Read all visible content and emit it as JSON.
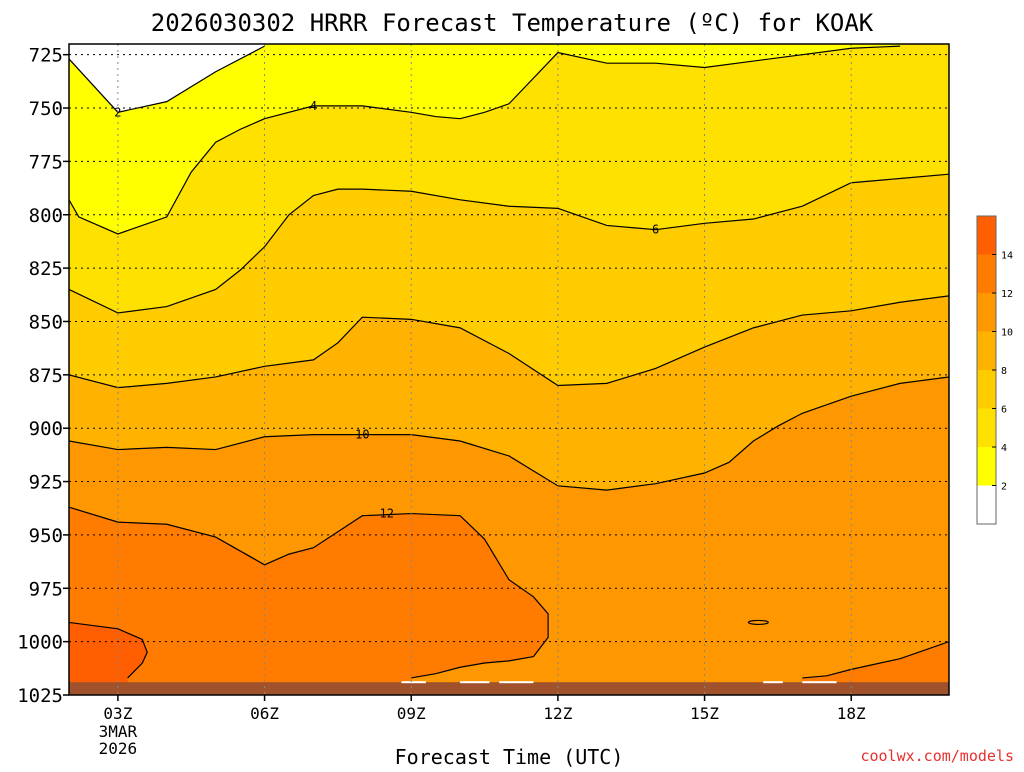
{
  "chart_data": {
    "type": "heatmap",
    "title": "2026030302 HRRR Forecast Temperature (ºC) for KOAK",
    "xlabel": "Forecast Time (UTC)",
    "ylabel": "",
    "credit": "coolwx.com/models",
    "x_range_hours": [
      2,
      20
    ],
    "y_range_hpa": [
      720,
      1025
    ],
    "y_scale": "pressure (inverted)",
    "grid": "dotted",
    "x_ticks": [
      {
        "hour": 3,
        "label": "03Z",
        "sub": [
          "3MAR",
          "2026"
        ]
      },
      {
        "hour": 6,
        "label": "06Z",
        "sub": []
      },
      {
        "hour": 9,
        "label": "09Z",
        "sub": []
      },
      {
        "hour": 12,
        "label": "12Z",
        "sub": []
      },
      {
        "hour": 15,
        "label": "15Z",
        "sub": []
      },
      {
        "hour": 18,
        "label": "18Z",
        "sub": []
      }
    ],
    "y_ticks": [
      {
        "p": 725,
        "label": "725"
      },
      {
        "p": 750,
        "label": "750"
      },
      {
        "p": 775,
        "label": "775"
      },
      {
        "p": 800,
        "label": "800"
      },
      {
        "p": 825,
        "label": "825"
      },
      {
        "p": 850,
        "label": "850"
      },
      {
        "p": 875,
        "label": "875"
      },
      {
        "p": 900,
        "label": "900"
      },
      {
        "p": 925,
        "label": "925"
      },
      {
        "p": 950,
        "label": "950"
      },
      {
        "p": 975,
        "label": "975"
      },
      {
        "p": 1000,
        "label": "1000"
      },
      {
        "p": 1025,
        "label": "1025"
      }
    ],
    "legend": {
      "placement": "right",
      "levels": [
        {
          "min": null,
          "max": 2,
          "label": "",
          "color": "#ffffff"
        },
        {
          "min": 2,
          "max": 4,
          "label": "2",
          "color": "#ffff00"
        },
        {
          "min": 4,
          "max": 6,
          "label": "4",
          "color": "#ffe100"
        },
        {
          "min": 6,
          "max": 8,
          "label": "6",
          "color": "#ffcc00"
        },
        {
          "min": 8,
          "max": 10,
          "label": "8",
          "color": "#ffb300"
        },
        {
          "min": 10,
          "max": 12,
          "label": "10",
          "color": "#ff9800"
        },
        {
          "min": 12,
          "max": 14,
          "label": "12",
          "color": "#ff7c00"
        },
        {
          "min": 14,
          "max": null,
          "label": "14",
          "color": "#ff5f00"
        }
      ]
    },
    "ground_color": "#a0522d",
    "ground_top_hpa": 1019,
    "contours": [
      {
        "level": 2,
        "label": "2",
        "label_at": [
          3.0,
          752
        ],
        "points": [
          [
            2,
            727
          ],
          [
            3,
            752
          ],
          [
            4,
            747
          ],
          [
            5,
            733
          ],
          [
            6,
            721
          ]
        ]
      },
      {
        "level": 4,
        "label": "4",
        "label_at": [
          7.0,
          749
        ],
        "points": [
          [
            2,
            793
          ],
          [
            2.2,
            801
          ],
          [
            3,
            809
          ],
          [
            4,
            801
          ],
          [
            4.5,
            780
          ],
          [
            5,
            766
          ],
          [
            5.5,
            760
          ],
          [
            6,
            755
          ],
          [
            7,
            749
          ],
          [
            8,
            749
          ],
          [
            9,
            752
          ],
          [
            9.5,
            754
          ],
          [
            10,
            755
          ],
          [
            10.5,
            752
          ],
          [
            11,
            748
          ],
          [
            12,
            724
          ],
          [
            13,
            729
          ],
          [
            14,
            729
          ],
          [
            15,
            731
          ],
          [
            16,
            728
          ],
          [
            17,
            725
          ],
          [
            18,
            722
          ],
          [
            19,
            721
          ]
        ]
      },
      {
        "level": 6,
        "label": "6",
        "label_at": [
          14.0,
          807
        ],
        "points": [
          [
            2,
            835
          ],
          [
            3,
            846
          ],
          [
            4,
            843
          ],
          [
            5,
            835
          ],
          [
            5.5,
            826
          ],
          [
            6,
            815
          ],
          [
            6.5,
            800
          ],
          [
            7,
            791
          ],
          [
            7.5,
            788
          ],
          [
            8,
            788
          ],
          [
            9,
            789
          ],
          [
            10,
            793
          ],
          [
            11,
            796
          ],
          [
            12,
            797
          ],
          [
            13,
            805
          ],
          [
            14,
            807
          ],
          [
            15,
            804
          ],
          [
            16,
            802
          ],
          [
            17,
            796
          ],
          [
            18,
            785
          ],
          [
            19,
            783
          ],
          [
            20,
            781
          ]
        ]
      },
      {
        "level": 8,
        "label": "",
        "label_at": null,
        "points": [
          [
            2,
            875
          ],
          [
            3,
            881
          ],
          [
            4,
            879
          ],
          [
            5,
            876
          ],
          [
            6,
            871
          ],
          [
            7,
            868
          ],
          [
            7.5,
            860
          ],
          [
            8,
            848
          ],
          [
            9,
            849
          ],
          [
            10,
            853
          ],
          [
            11,
            865
          ],
          [
            12,
            880
          ],
          [
            13,
            879
          ],
          [
            14,
            872
          ],
          [
            15,
            862
          ],
          [
            16,
            853
          ],
          [
            17,
            847
          ],
          [
            18,
            845
          ],
          [
            19,
            841
          ],
          [
            20,
            838
          ]
        ]
      },
      {
        "level": 10,
        "label": "10",
        "label_at": [
          8.0,
          903
        ],
        "points": [
          [
            2,
            906
          ],
          [
            3,
            910
          ],
          [
            4,
            909
          ],
          [
            5,
            910
          ],
          [
            6,
            904
          ],
          [
            7,
            903
          ],
          [
            8,
            903
          ],
          [
            9,
            903
          ],
          [
            10,
            906
          ],
          [
            11,
            913
          ],
          [
            12,
            927
          ],
          [
            13,
            929
          ],
          [
            14,
            926
          ],
          [
            15,
            921
          ],
          [
            15.5,
            916
          ],
          [
            16,
            906
          ],
          [
            16.5,
            899
          ],
          [
            17,
            893
          ],
          [
            18,
            885
          ],
          [
            19,
            879
          ],
          [
            20,
            876
          ]
        ]
      },
      {
        "level": 12,
        "label": "12",
        "label_at": [
          8.5,
          940
        ],
        "points": [
          [
            2,
            937
          ],
          [
            3,
            944
          ],
          [
            4,
            945
          ],
          [
            5,
            951
          ],
          [
            6,
            964
          ],
          [
            6.5,
            959
          ],
          [
            7,
            956
          ],
          [
            8,
            941
          ],
          [
            9,
            940
          ],
          [
            10,
            941
          ],
          [
            10.5,
            952
          ],
          [
            11,
            971
          ],
          [
            11.5,
            979
          ],
          [
            11.8,
            987
          ],
          [
            11.8,
            998
          ],
          [
            11.5,
            1007
          ],
          [
            11,
            1009
          ],
          [
            10.5,
            1010
          ],
          [
            10,
            1012
          ],
          [
            9.5,
            1015
          ],
          [
            9,
            1017
          ]
        ]
      },
      {
        "level": 14,
        "label": "",
        "label_at": null,
        "points": [
          [
            2,
            991
          ],
          [
            3,
            994
          ],
          [
            3.5,
            999
          ],
          [
            3.6,
            1005
          ],
          [
            3.5,
            1010
          ],
          [
            3.2,
            1017
          ]
        ]
      },
      {
        "level": 12,
        "label": "",
        "label_at": null,
        "points": [
          [
            17,
            1017
          ],
          [
            17.5,
            1016
          ],
          [
            18,
            1013
          ],
          [
            19,
            1008
          ],
          [
            20,
            1000
          ]
        ]
      }
    ]
  }
}
